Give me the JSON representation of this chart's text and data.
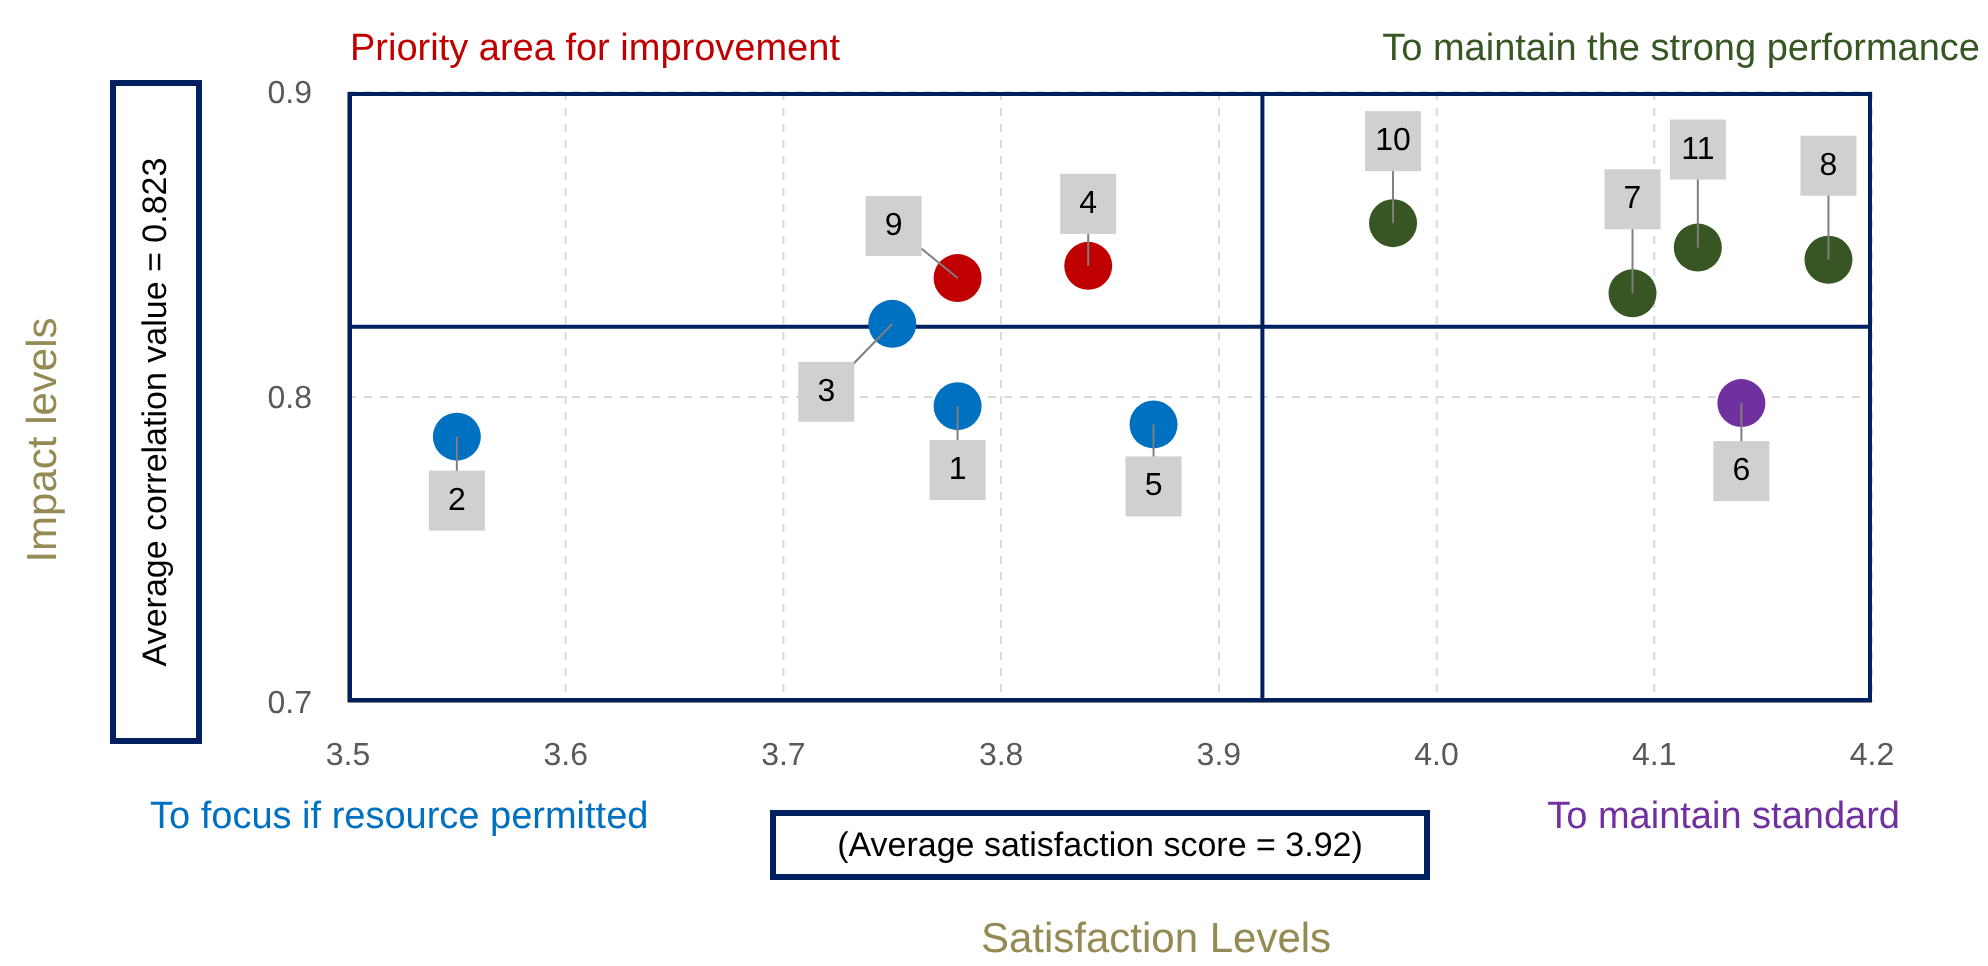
{
  "chart_data": {
    "type": "scatter",
    "xlabel": "Satisfaction Levels",
    "ylabel": "Impact levels",
    "xlim": [
      3.5,
      4.2
    ],
    "ylim": [
      0.7,
      0.9
    ],
    "xticks": [
      3.5,
      3.6,
      3.7,
      3.8,
      3.9,
      {
        "value": 4,
        "label": "4.0"
      },
      4.1,
      4.2
    ],
    "yticks": [
      0.7,
      0.8,
      0.9
    ],
    "grid": true,
    "marker": "circle",
    "series": [
      {
        "name": "Priority area for improvement",
        "color": "#c00000",
        "x": [
          3.78,
          3.84
        ],
        "values": [
          0.839,
          0.843
        ]
      },
      {
        "name": "To maintain the strong performance",
        "color": "#375623",
        "x": [
          3.98,
          4.09,
          4.12,
          4.18
        ],
        "values": [
          0.857,
          0.834,
          0.849,
          0.845
        ]
      },
      {
        "name": "To focus if resource permitted",
        "color": "#0070c0",
        "x": [
          3.55,
          3.75,
          3.78,
          3.87
        ],
        "values": [
          0.787,
          0.824,
          0.797,
          0.791
        ]
      },
      {
        "name": "To maintain standard",
        "color": "#7030a0",
        "x": [
          4.14
        ],
        "values": [
          0.798
        ]
      }
    ],
    "ref_lines": [
      {
        "axis": "x",
        "value": 3.92,
        "color": "#002060"
      },
      {
        "axis": "y",
        "value": 0.823,
        "color": "#002060"
      }
    ],
    "annotations": [
      "(Average satisfaction score = 3.92)",
      "Average correlation value = 0.823",
      {
        "text": "9",
        "x": 3.78,
        "y": 0.839
      },
      {
        "text": "4",
        "x": 3.84,
        "y": 0.843
      },
      {
        "text": "10",
        "x": 3.98,
        "y": 0.857
      },
      {
        "text": "7",
        "x": 4.09,
        "y": 0.834
      },
      {
        "text": "11",
        "x": 4.12,
        "y": 0.849
      },
      {
        "text": "8",
        "x": 4.18,
        "y": 0.845
      },
      {
        "text": "2",
        "x": 3.55,
        "y": 0.787
      },
      {
        "text": "3",
        "x": 3.75,
        "y": 0.824
      },
      {
        "text": "1",
        "x": 3.78,
        "y": 0.797
      },
      {
        "text": "5",
        "x": 3.87,
        "y": 0.791
      },
      {
        "text": "6",
        "x": 4.14,
        "y": 0.798
      }
    ]
  }
}
